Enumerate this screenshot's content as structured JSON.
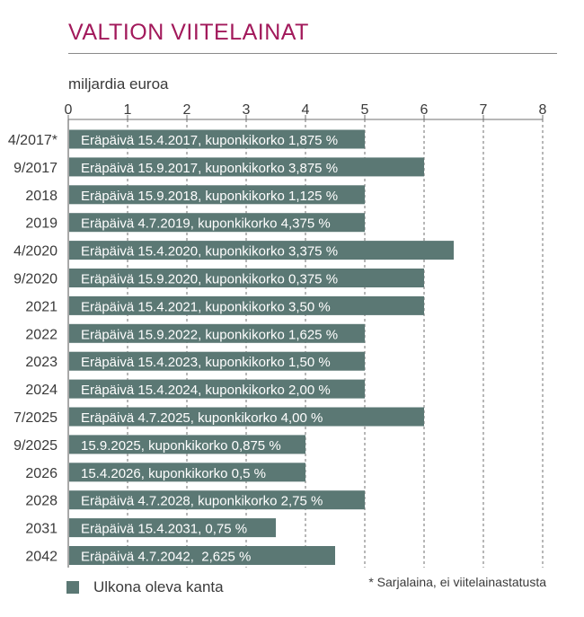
{
  "colors": {
    "title": "#a2195b",
    "bar": "#5b7874",
    "bar_text": "#ffffff",
    "text": "#3a3a3a",
    "grid": "#6f6f6f"
  },
  "chart_data": {
    "type": "bar",
    "orientation": "horizontal",
    "title": "VALTION VIITELAINAT",
    "xlabel": "miljardia euroa",
    "xlim": [
      0,
      8
    ],
    "xticks": [
      "0",
      "1",
      "2",
      "3",
      "4",
      "5",
      "6",
      "7",
      "8"
    ],
    "categories": [
      "4/2017*",
      "9/2017",
      "2018",
      "2019",
      "4/2020",
      "9/2020",
      "2021",
      "2022",
      "2023",
      "2024",
      "7/2025",
      "9/2025",
      "2026",
      "2028",
      "2031",
      "2042"
    ],
    "values": [
      5.0,
      6.0,
      5.0,
      5.0,
      6.5,
      6.0,
      6.0,
      5.0,
      5.0,
      5.0,
      6.0,
      4.0,
      4.0,
      5.0,
      3.5,
      4.5
    ],
    "bar_labels": [
      "Eräpäivä 15.4.2017, kuponkikorko 1,875 %",
      "Eräpäivä 15.9.2017, kuponkikorko 3,875 %",
      "Eräpäivä 15.9.2018, kuponkikorko 1,125 %",
      "Eräpäivä 4.7.2019, kuponkikorko 4,375 %",
      "Eräpäivä 15.4.2020, kuponkikorko 3,375 %",
      "Eräpäivä 15.9.2020, kuponkikorko 0,375 %",
      "Eräpäivä 15.4.2021, kuponkikorko 3,50 %",
      "Eräpäivä 15.9.2022, kuponkikorko 1,625 %",
      "Eräpäivä 15.4.2023, kuponkikorko 1,50 %",
      "Eräpäivä 15.4.2024, kuponkikorko 2,00 %",
      "Eräpäivä 4.7.2025, kuponkikorko 4,00 %",
      "15.9.2025, kuponkikorko 0,875 %",
      "15.4.2026, kuponkikorko 0,5 %",
      "Eräpäivä 4.7.2028, kuponkikorko 2,75 %",
      "Eräpäivä 15.4.2031, 0,75 %",
      "Eräpäivä 4.7.2042,  2,625 %"
    ],
    "grid": "vertical dashed",
    "legend": {
      "position": "bottom-left",
      "entries": [
        "Ulkona oleva kanta"
      ]
    },
    "footnote": "* Sarjalaina, ei viitelainastatusta"
  }
}
